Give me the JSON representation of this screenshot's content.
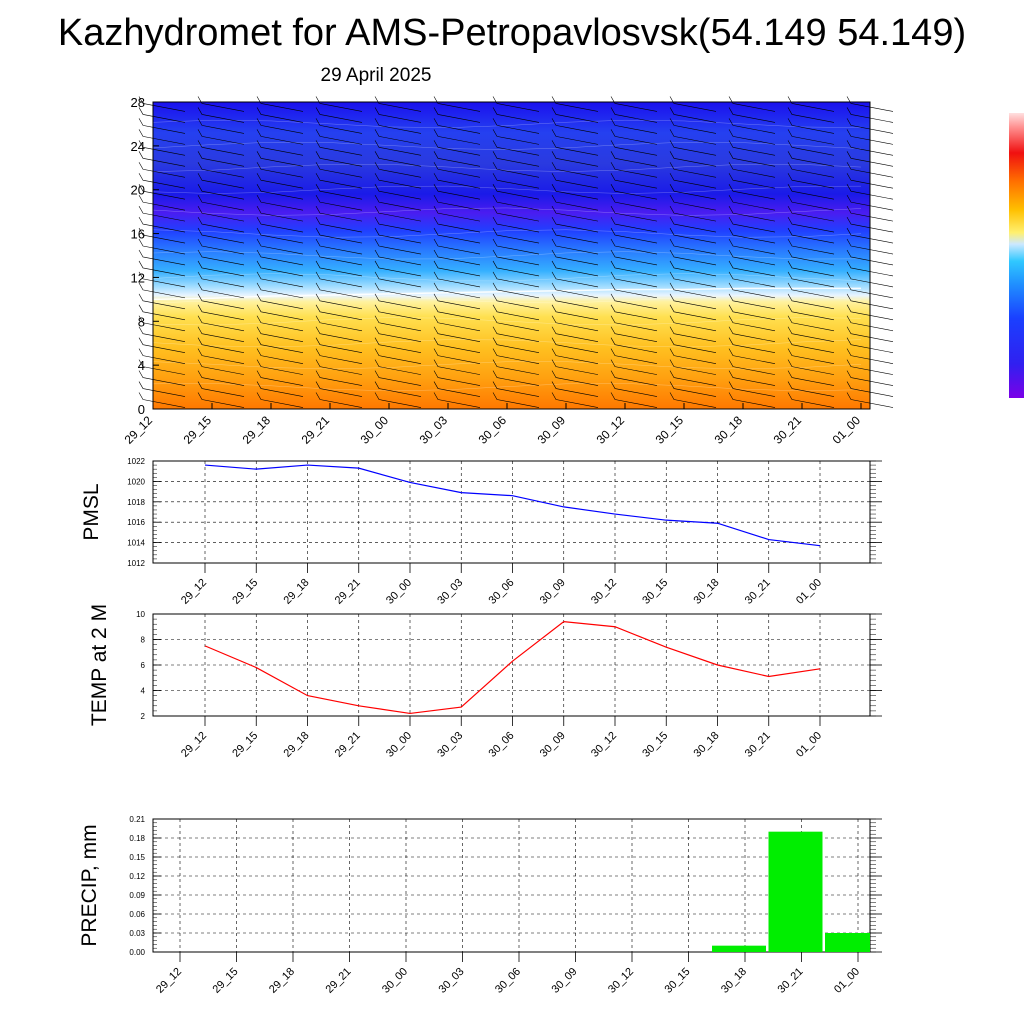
{
  "header": {
    "title": "Kazhydromet for AMS-Petropavlosvsk(54.149 54.149)",
    "subtitle": "29 April 2025"
  },
  "time_labels": [
    "29_12",
    "29_15",
    "29_18",
    "29_21",
    "30_00",
    "30_03",
    "30_06",
    "30_09",
    "30_12",
    "30_15",
    "30_18",
    "30_21",
    "01_00"
  ],
  "chart_data": [
    {
      "type": "heatmap",
      "name": "cross-section",
      "xlabel": "",
      "ylabel": "",
      "x": [
        "29_12",
        "29_15",
        "29_18",
        "29_21",
        "30_00",
        "30_03",
        "30_06",
        "30_09",
        "30_12",
        "30_15",
        "30_18",
        "30_21",
        "01_00"
      ],
      "y_ticks": [
        0,
        4,
        8,
        12,
        16,
        20,
        24,
        28
      ],
      "ylim": [
        0,
        28
      ],
      "colorbar": {
        "position": "right",
        "labels_visible": false
      },
      "warm_layer_top_y": [
        10.0,
        10.1,
        10.3,
        10.4,
        10.5,
        10.6,
        10.7,
        10.8,
        10.9,
        10.9,
        11.0,
        11.0,
        11.0
      ],
      "wind_barbs": true
    },
    {
      "type": "line",
      "name": "pmsl",
      "xlabel": "",
      "ylabel": "PMSL",
      "x": [
        "29_12",
        "29_15",
        "29_18",
        "29_21",
        "30_00",
        "30_03",
        "30_06",
        "30_09",
        "30_12",
        "30_15",
        "30_18",
        "30_21",
        "01_00"
      ],
      "series": [
        {
          "values": [
            1021.6,
            1021.2,
            1021.6,
            1021.3,
            1019.9,
            1018.9,
            1018.6,
            1017.5,
            1016.8,
            1016.2,
            1015.9,
            1014.3,
            1013.7
          ],
          "color": "#0000ff"
        }
      ],
      "ylim": [
        1012,
        1022
      ],
      "y_ticks": [
        1012,
        1014,
        1016,
        1018,
        1020,
        1022
      ],
      "grid": true
    },
    {
      "type": "line",
      "name": "temp2m",
      "xlabel": "",
      "ylabel": "TEMP at 2 M",
      "x": [
        "29_12",
        "29_15",
        "29_18",
        "29_21",
        "30_00",
        "30_03",
        "30_06",
        "30_09",
        "30_12",
        "30_15",
        "30_18",
        "30_21",
        "01_00"
      ],
      "series": [
        {
          "values": [
            7.5,
            5.8,
            3.6,
            2.8,
            2.2,
            2.7,
            6.3,
            9.4,
            9.0,
            7.4,
            6.0,
            5.1,
            5.7
          ],
          "color": "#ff0000"
        }
      ],
      "ylim": [
        2,
        10
      ],
      "y_ticks": [
        2,
        4,
        6,
        8,
        10
      ],
      "grid": true
    },
    {
      "type": "bar",
      "name": "precip",
      "xlabel": "",
      "ylabel": "PRECIP, mm",
      "categories": [
        "29_12",
        "29_15",
        "29_18",
        "29_21",
        "30_00",
        "30_03",
        "30_06",
        "30_09",
        "30_12",
        "30_15",
        "30_18",
        "30_21",
        "01_00"
      ],
      "values": [
        0,
        0,
        0,
        0,
        0,
        0,
        0,
        0,
        0,
        0,
        0.01,
        0.19,
        0.03
      ],
      "color": "#00ee00",
      "ylim": [
        0,
        0.21
      ],
      "y_ticks": [
        "0.00",
        "0.03",
        "0.06",
        "0.09",
        "0.12",
        "0.15",
        "0.18",
        "0.21"
      ],
      "grid": true
    }
  ]
}
